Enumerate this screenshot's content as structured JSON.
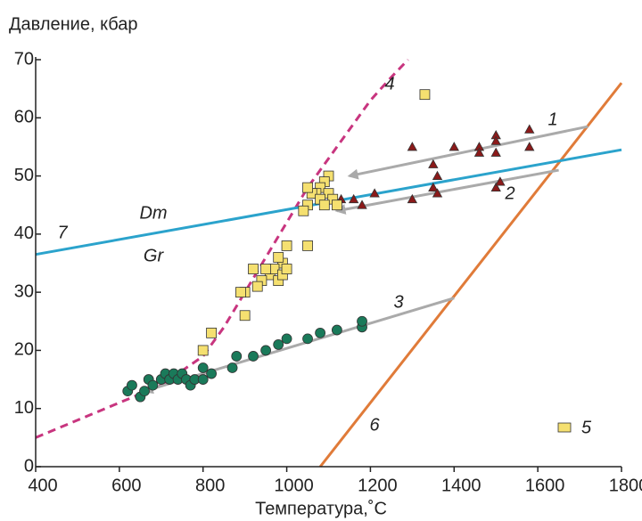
{
  "chart_data": {
    "type": "scatter",
    "title": "Давление, кбар",
    "x_label": "Температура,˚С",
    "xlim": [
      400,
      1800
    ],
    "ylim": [
      0,
      70
    ],
    "xticks": [
      400,
      600,
      800,
      1000,
      1200,
      1400,
      1600,
      1800
    ],
    "yticks": [
      0,
      10,
      20,
      30,
      40,
      50,
      60,
      70
    ],
    "annotations": [
      "Dm",
      "Gr"
    ],
    "series": [
      {
        "name": "4",
        "type": "line",
        "dash": true,
        "color": "#c8357f",
        "x": [
          400,
          500,
          600,
          700,
          800,
          850,
          900,
          950,
          1000,
          1050,
          1100,
          1150,
          1200,
          1250,
          1290
        ],
        "y": [
          5,
          8,
          11,
          14,
          19,
          24,
          30,
          36,
          42,
          48,
          53,
          58,
          63,
          67,
          70
        ]
      },
      {
        "name": "6",
        "type": "line",
        "color": "#e07b39",
        "x": [
          1080,
          1800
        ],
        "y": [
          0,
          66
        ]
      },
      {
        "name": "7",
        "type": "line",
        "color": "#2ba3cc",
        "x": [
          400,
          1800
        ],
        "y": [
          36.5,
          54.5
        ]
      },
      {
        "name": "1",
        "type": "arrow",
        "color": "#aaaaaa",
        "x": [
          1720,
          1150
        ],
        "y": [
          58.5,
          50
        ]
      },
      {
        "name": "2",
        "type": "arrow",
        "color": "#aaaaaa",
        "x": [
          1650,
          1120
        ],
        "y": [
          51,
          44
        ]
      },
      {
        "name": "3",
        "type": "arrow",
        "color": "#aaaaaa",
        "x": [
          1400,
          660
        ],
        "y": [
          29,
          13
        ]
      },
      {
        "type": "points",
        "marker": "triangle",
        "color": "#8b1a1a",
        "x": [
          1130,
          1160,
          1180,
          1210,
          1300,
          1350,
          1360,
          1300,
          1350,
          1360,
          1400,
          1460,
          1460,
          1500,
          1500,
          1500,
          1500,
          1510,
          1580,
          1580
        ],
        "y": [
          46,
          46,
          45,
          47,
          46,
          48,
          47,
          55,
          52,
          50,
          55,
          55,
          54,
          57,
          56,
          54,
          48,
          49,
          58,
          55
        ]
      },
      {
        "name": "5",
        "type": "points",
        "marker": "square",
        "color": "#f5e070",
        "x": [
          1330,
          1100,
          1090,
          1080,
          1070,
          1060,
          1050,
          1100,
          1110,
          1120,
          1050,
          1040,
          1080,
          1090,
          1000,
          1050,
          990,
          980,
          960,
          970,
          950,
          940,
          920,
          930,
          900,
          890,
          980,
          990,
          1000,
          900,
          820,
          800
        ],
        "y": [
          64,
          50,
          49,
          48,
          47,
          47,
          48,
          47,
          46,
          45,
          45,
          44,
          46,
          45,
          38,
          38,
          35,
          36,
          33,
          34,
          34,
          32,
          34,
          31,
          30,
          30,
          32,
          33,
          34,
          26,
          23,
          20
        ]
      },
      {
        "type": "points",
        "marker": "circle",
        "color": "#1a7a5a",
        "x": [
          620,
          630,
          650,
          660,
          670,
          680,
          700,
          710,
          720,
          730,
          740,
          750,
          760,
          770,
          780,
          800,
          800,
          820,
          870,
          880,
          920,
          950,
          980,
          1000,
          1050,
          1080,
          1120,
          1180,
          1180
        ],
        "y": [
          13,
          14,
          12,
          13,
          15,
          14,
          15,
          16,
          15,
          16,
          15,
          16,
          15,
          14,
          15,
          15,
          17,
          16,
          17,
          19,
          19,
          20,
          21,
          22,
          22,
          23,
          23.5,
          24,
          25
        ]
      }
    ]
  }
}
